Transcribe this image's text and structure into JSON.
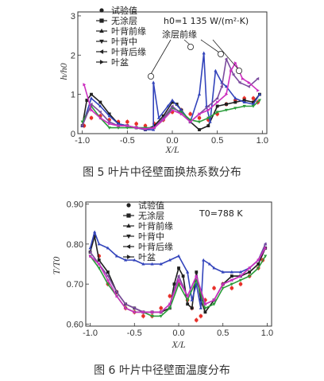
{
  "figure5": {
    "caption": "图 5   叶片中径壁面换热系数分布",
    "formula": "h0=1 135 W/(m²·K)",
    "annotation": "涂层前缘"
  },
  "figure6": {
    "caption": "图 6   叶片中径壁面温度分布",
    "formula": "T0=788 K"
  },
  "chart_data": [
    {
      "type": "line",
      "title": "",
      "xlabel": "X/L",
      "ylabel": "h/h0",
      "xlim": [
        -1.05,
        1.05
      ],
      "ylim": [
        0,
        3.1
      ],
      "xticks": [
        "-1.0",
        "-0.5",
        "0.0",
        "0.5",
        "1.0"
      ],
      "yticks": [
        "0",
        "1",
        "2",
        "3"
      ],
      "annotations": [
        "h0=1 135 W/(m²·K)",
        "涂层前缘"
      ],
      "legend_position": "top-left",
      "series": [
        {
          "name": "试验值",
          "color": "#e8302a",
          "x": [
            -0.98,
            -0.9,
            -0.8,
            -0.7,
            -0.6,
            -0.5,
            -0.4,
            -0.3,
            -0.2,
            -0.1,
            0.0,
            0.1,
            0.2,
            0.3,
            0.4,
            0.5,
            0.6,
            0.7,
            0.8,
            0.9,
            0.95
          ],
          "y": [
            0.2,
            0.4,
            0.45,
            0.35,
            0.3,
            0.3,
            0.25,
            0.2,
            0.25,
            0.35,
            0.55,
            0.6,
            0.5,
            0.4,
            0.35,
            0.5,
            0.75,
            0.85,
            0.9,
            0.9,
            0.8
          ]
        },
        {
          "name": "无涂层",
          "color": "#1f1f1f",
          "x": [
            -1.0,
            -0.95,
            -0.9,
            -0.8,
            -0.7,
            -0.6,
            -0.5,
            -0.4,
            -0.3,
            -0.2,
            -0.1,
            0.0,
            0.05,
            0.1,
            0.2,
            0.3,
            0.4,
            0.5,
            0.6,
            0.7,
            0.8,
            0.9,
            0.97
          ],
          "y": [
            0.2,
            0.85,
            1.0,
            0.8,
            0.5,
            0.25,
            0.2,
            0.15,
            0.1,
            0.2,
            0.45,
            0.8,
            0.75,
            0.6,
            0.3,
            0.1,
            0.2,
            0.7,
            0.75,
            0.8,
            0.85,
            0.8,
            1.0
          ]
        },
        {
          "name": "叶背前缘",
          "color": "#3344bb",
          "x": [
            -1.0,
            -0.9,
            -0.8,
            -0.7,
            -0.6,
            -0.5,
            -0.4,
            -0.3,
            -0.21,
            -0.21,
            -0.15,
            -0.05,
            0.0,
            0.1,
            0.2,
            0.3,
            0.35,
            0.38,
            0.42,
            0.48,
            0.55,
            0.6,
            0.7,
            0.8,
            0.9,
            0.97
          ],
          "y": [
            0.2,
            0.9,
            0.7,
            0.45,
            0.25,
            0.2,
            0.15,
            0.1,
            0.1,
            1.3,
            0.4,
            0.7,
            0.85,
            0.6,
            0.3,
            1.0,
            2.05,
            0.7,
            0.3,
            1.6,
            1.3,
            1.2,
            0.9,
            0.8,
            0.75,
            1.0
          ]
        },
        {
          "name": "叶背中",
          "color": "#2a9c3a",
          "x": [
            -1.0,
            -0.9,
            -0.8,
            -0.7,
            -0.6,
            -0.5,
            -0.4,
            -0.3,
            -0.2,
            -0.1,
            0.0,
            0.1,
            0.2,
            0.3,
            0.4,
            0.5,
            0.6,
            0.7,
            0.8,
            0.9,
            0.97
          ],
          "y": [
            0.3,
            0.7,
            0.4,
            0.15,
            0.15,
            0.15,
            0.15,
            0.15,
            0.15,
            0.35,
            0.65,
            0.55,
            0.35,
            0.3,
            0.4,
            0.55,
            0.6,
            0.65,
            0.7,
            0.7,
            0.85
          ]
        },
        {
          "name": "叶背后缘",
          "color": "#7b4b9e",
          "x": [
            -1.0,
            -0.9,
            -0.8,
            -0.7,
            -0.6,
            -0.5,
            -0.4,
            -0.3,
            -0.2,
            -0.1,
            0.0,
            0.1,
            0.2,
            0.3,
            0.4,
            0.5,
            0.55,
            0.6,
            0.68,
            0.75,
            0.85,
            0.95
          ],
          "y": [
            0.2,
            0.75,
            0.55,
            0.3,
            0.2,
            0.2,
            0.15,
            0.12,
            0.15,
            0.4,
            0.7,
            0.5,
            0.3,
            0.5,
            0.7,
            0.9,
            1.2,
            1.9,
            1.5,
            1.3,
            1.2,
            1.4
          ]
        },
        {
          "name": "叶盆",
          "color": "#cc2fbf",
          "x": [
            -0.98,
            -0.9,
            -0.8,
            -0.7,
            -0.6,
            -0.5,
            -0.4,
            -0.3,
            -0.2,
            -0.1,
            0.0,
            0.1,
            0.2,
            0.3,
            0.4,
            0.5,
            0.6,
            0.65,
            0.7,
            0.78,
            0.85,
            0.95
          ],
          "y": [
            1.25,
            0.6,
            0.4,
            0.25,
            0.2,
            0.2,
            0.15,
            0.12,
            0.15,
            0.35,
            0.6,
            0.5,
            0.3,
            0.5,
            0.6,
            0.8,
            1.0,
            1.6,
            1.8,
            1.4,
            1.3,
            1.1
          ]
        }
      ]
    },
    {
      "type": "line",
      "title": "",
      "xlabel": "X/L",
      "ylabel": "T/T0",
      "xlim": [
        -1.05,
        1.05
      ],
      "ylim": [
        0.595,
        0.905
      ],
      "xticks": [
        "-1.0",
        "-0.5",
        "0.0",
        "0.5",
        "1.0"
      ],
      "yticks": [
        "0.60",
        "0.70",
        "0.80",
        "0.90"
      ],
      "annotations": [
        "T0=788 K"
      ],
      "legend_position": "top-left",
      "series": [
        {
          "name": "试验值",
          "color": "#e8302a",
          "x": [
            -0.9,
            -0.8,
            -0.7,
            -0.6,
            -0.5,
            -0.4,
            -0.3,
            -0.2,
            -0.1,
            0.0,
            0.1,
            0.15,
            0.2,
            0.25,
            0.3,
            0.4,
            0.5,
            0.6,
            0.7,
            0.8,
            0.9,
            0.95
          ],
          "y": [
            0.77,
            0.7,
            0.68,
            0.64,
            0.63,
            0.62,
            0.62,
            0.64,
            0.67,
            0.7,
            0.66,
            0.64,
            0.61,
            0.62,
            0.66,
            0.69,
            0.7,
            0.69,
            0.7,
            0.72,
            0.74,
            0.76
          ]
        },
        {
          "name": "无涂层",
          "color": "#1f1f1f",
          "x": [
            -1.0,
            -0.95,
            -0.9,
            -0.8,
            -0.7,
            -0.6,
            -0.5,
            -0.4,
            -0.3,
            -0.2,
            -0.1,
            -0.05,
            0.0,
            0.05,
            0.1,
            0.15,
            0.2,
            0.25,
            0.3,
            0.4,
            0.5,
            0.6,
            0.7,
            0.8,
            0.9,
            0.98
          ],
          "y": [
            0.78,
            0.82,
            0.76,
            0.73,
            0.68,
            0.65,
            0.64,
            0.63,
            0.63,
            0.63,
            0.64,
            0.7,
            0.74,
            0.72,
            0.65,
            0.64,
            0.73,
            0.66,
            0.63,
            0.66,
            0.7,
            0.72,
            0.72,
            0.73,
            0.75,
            0.79
          ]
        },
        {
          "name": "叶背前缘",
          "color": "#3344bb",
          "x": [
            -1.0,
            -0.95,
            -0.9,
            -0.8,
            -0.7,
            -0.6,
            -0.5,
            -0.4,
            -0.3,
            -0.2,
            -0.1,
            0.0,
            0.1,
            0.15,
            0.2,
            0.25,
            0.28,
            0.35,
            0.4,
            0.5,
            0.6,
            0.7,
            0.8,
            0.9,
            0.98
          ],
          "y": [
            0.79,
            0.83,
            0.8,
            0.79,
            0.77,
            0.76,
            0.76,
            0.75,
            0.75,
            0.75,
            0.76,
            0.77,
            0.73,
            0.66,
            0.7,
            0.64,
            0.76,
            0.75,
            0.74,
            0.73,
            0.73,
            0.73,
            0.74,
            0.76,
            0.8
          ]
        },
        {
          "name": "叶背中",
          "color": "#2a9c3a",
          "x": [
            -1.0,
            -0.9,
            -0.8,
            -0.7,
            -0.6,
            -0.5,
            -0.4,
            -0.3,
            -0.2,
            -0.1,
            0.0,
            0.1,
            0.2,
            0.3,
            0.4,
            0.5,
            0.6,
            0.7,
            0.8,
            0.9,
            0.98
          ],
          "y": [
            0.77,
            0.74,
            0.7,
            0.67,
            0.64,
            0.63,
            0.63,
            0.62,
            0.62,
            0.64,
            0.7,
            0.66,
            0.71,
            0.64,
            0.65,
            0.69,
            0.7,
            0.71,
            0.72,
            0.74,
            0.77
          ]
        },
        {
          "name": "叶背后缘",
          "color": "#7b4b9e",
          "x": [
            -1.0,
            -0.9,
            -0.8,
            -0.7,
            -0.6,
            -0.5,
            -0.4,
            -0.3,
            -0.2,
            -0.1,
            0.0,
            0.1,
            0.2,
            0.3,
            0.4,
            0.5,
            0.6,
            0.7,
            0.8,
            0.9,
            0.98
          ],
          "y": [
            0.78,
            0.75,
            0.72,
            0.68,
            0.65,
            0.64,
            0.63,
            0.63,
            0.63,
            0.65,
            0.72,
            0.67,
            0.72,
            0.65,
            0.66,
            0.7,
            0.71,
            0.72,
            0.74,
            0.76,
            0.8
          ]
        },
        {
          "name": "叶盆",
          "color": "#cc2fbf",
          "x": [
            -1.0,
            -0.9,
            -0.8,
            -0.7,
            -0.6,
            -0.5,
            -0.4,
            -0.3,
            -0.2,
            -0.1,
            0.0,
            0.1,
            0.2,
            0.3,
            0.4,
            0.5,
            0.6,
            0.7,
            0.8,
            0.9,
            0.98
          ],
          "y": [
            0.77,
            0.75,
            0.71,
            0.67,
            0.64,
            0.63,
            0.63,
            0.63,
            0.63,
            0.65,
            0.71,
            0.67,
            0.72,
            0.65,
            0.66,
            0.7,
            0.71,
            0.72,
            0.74,
            0.76,
            0.79
          ]
        }
      ]
    }
  ]
}
